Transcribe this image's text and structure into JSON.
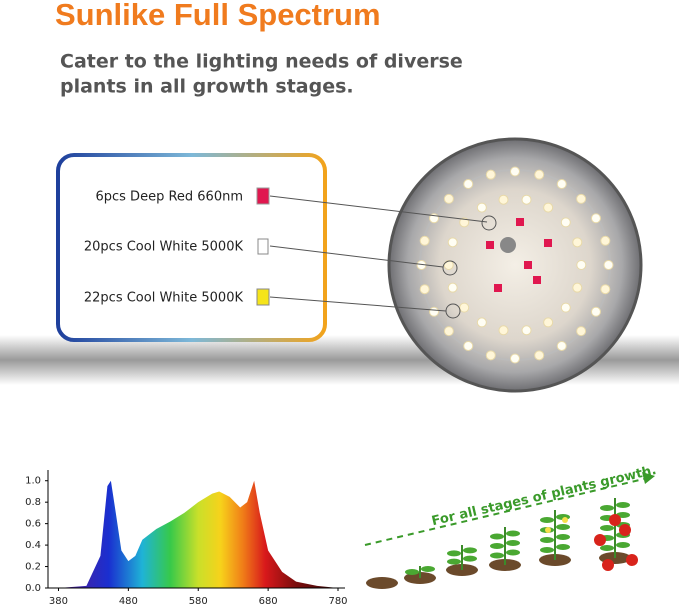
{
  "header": {
    "title": "Sunlike Full Spectrum",
    "subtitle_lines": [
      "Cater to the lighting needs of diverse",
      "plants in all growth stages."
    ]
  },
  "leds": [
    "6pcs Deep Red 660nm",
    "20pcs Cool White 5000K",
    "22pcs Cool White 5000K"
  ],
  "growth_caption": "For all stages of plants growth.",
  "chart_data": {
    "type": "area",
    "x": [
      380,
      420,
      440,
      450,
      455,
      462,
      470,
      480,
      490,
      500,
      520,
      540,
      560,
      580,
      600,
      610,
      625,
      640,
      650,
      660,
      668,
      680,
      700,
      720,
      750,
      780
    ],
    "values": [
      0,
      0.02,
      0.3,
      0.95,
      1.0,
      0.7,
      0.35,
      0.25,
      0.3,
      0.45,
      0.55,
      0.62,
      0.7,
      0.8,
      0.88,
      0.9,
      0.85,
      0.75,
      0.8,
      1.0,
      0.7,
      0.35,
      0.15,
      0.06,
      0.02,
      0
    ],
    "xlim": [
      365,
      790
    ],
    "ylim": [
      0,
      1.1
    ],
    "xticks": [
      380,
      480,
      580,
      680,
      780
    ],
    "yticks": [
      {
        "value": 0,
        "label": "0.0"
      },
      {
        "value": 0.2,
        "label": "0.2"
      },
      {
        "value": 0.4,
        "label": "0.4"
      },
      {
        "value": 0.6,
        "label": "0.6"
      },
      {
        "value": 0.8,
        "label": "0.8"
      },
      {
        "value": 1.0,
        "label": "1.0"
      }
    ]
  }
}
